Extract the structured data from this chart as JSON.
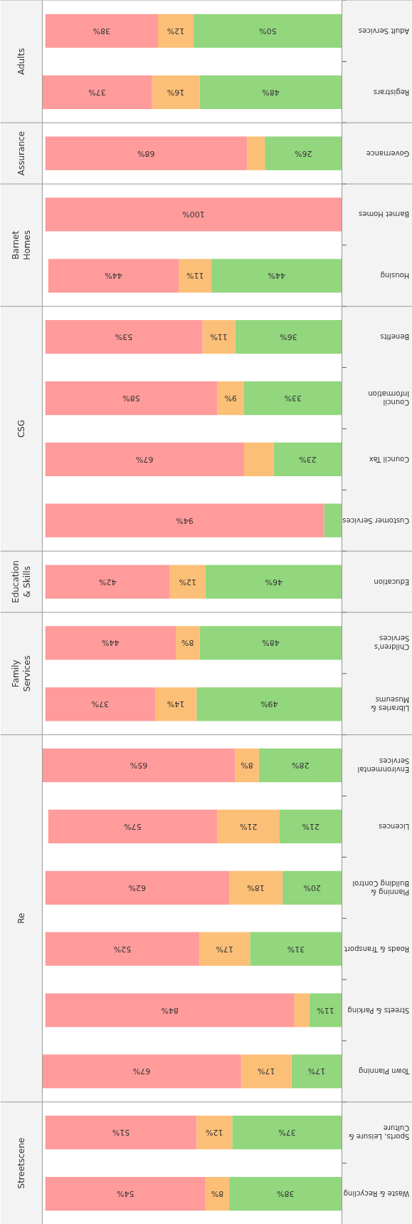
{
  "chart_data": {
    "type": "bar",
    "orientation": "horizontal",
    "stacked": true,
    "categories": [
      "Adult Services",
      "Registrars",
      "Governance",
      "Barnet Homes",
      "Housing",
      "Benefits",
      "Council Information",
      "Council Tax",
      "Customer Services",
      "Education",
      "Children's Services",
      "Libraries & Museums",
      "Environmental Services",
      "Licences",
      "Planning & Building Control",
      "Roads & Transport",
      "Streets & Parking",
      "Town Planning",
      "Sports, Leisure & Culture",
      "Waste & Recycling"
    ],
    "xlim": [
      101,
      0
    ],
    "series": [
      {
        "color": "#92d67e",
        "values": [
          50,
          48,
          26,
          0,
          44,
          36,
          33,
          23,
          6,
          46,
          48,
          49,
          28,
          21,
          20,
          31,
          11,
          17,
          37,
          38
        ],
        "value_labels": [
          "50%",
          "48%",
          "26%",
          null,
          "44%",
          "36%",
          "33%",
          "23%",
          null,
          "46%",
          "48%",
          "49%",
          "28%",
          "21%",
          "20%",
          "31%",
          "11%",
          "17%",
          "37%",
          "38%"
        ]
      },
      {
        "color": "#fcbf78",
        "values": [
          12,
          16,
          6,
          0,
          11,
          11,
          9,
          10,
          0,
          12,
          8,
          14,
          8,
          21,
          18,
          17,
          5,
          17,
          12,
          8
        ],
        "value_labels": [
          "12%",
          "16%",
          null,
          null,
          "11%",
          "11%",
          "9%",
          null,
          null,
          "12%",
          "8%",
          "14%",
          "8%",
          "21%",
          "18%",
          "17%",
          null,
          "17%",
          "12%",
          "8%"
        ]
      },
      {
        "color": "#ff9b9b",
        "values": [
          38,
          37,
          68,
          100,
          44,
          53,
          58,
          67,
          94,
          42,
          44,
          37,
          65,
          57,
          62,
          52,
          84,
          67,
          51,
          54
        ],
        "value_labels": [
          "38%",
          "37%",
          "68%",
          "100%",
          "44%",
          "53%",
          "58%",
          "67%",
          "94%",
          "42%",
          "44%",
          "37%",
          "65%",
          "57%",
          "62%",
          "52%",
          "84%",
          "67%",
          "51%",
          "54%"
        ]
      }
    ],
    "annotations": [
      "Adults",
      "Assurance",
      "Barnet Homes",
      "CSG",
      "Education & Skills",
      "Family Services",
      "Re",
      "Streetscene"
    ]
  }
}
